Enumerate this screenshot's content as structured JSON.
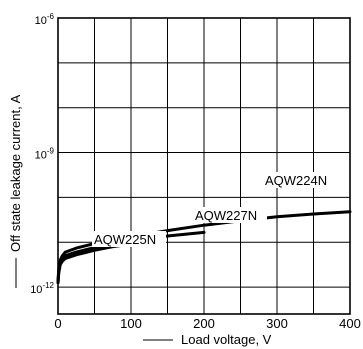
{
  "chart_data": {
    "type": "line",
    "xlabel": "Load voltage, V",
    "ylabel": "Off state leakage current, A",
    "xlim": [
      0,
      400
    ],
    "ylim_exponent": [
      -12.6,
      -6
    ],
    "y_scale": "log",
    "x_ticks": [
      0,
      100,
      200,
      300,
      400
    ],
    "y_ticks": [
      {
        "exp": -12,
        "label": "10",
        "sup": "-12"
      },
      {
        "exp": -9,
        "label": "10",
        "sup": "-9"
      },
      {
        "exp": -6,
        "label": "10",
        "sup": "-6"
      }
    ],
    "grid": true,
    "x_grid": [
      0,
      50,
      100,
      150,
      200,
      250,
      300,
      350,
      400
    ],
    "y_grid_exp": [
      -12,
      -11,
      -10,
      -9,
      -8,
      -7,
      -6
    ],
    "series": [
      {
        "name": "AQW224N",
        "x": [
          0,
          1,
          3,
          6,
          10,
          25,
          50,
          75,
          100,
          150,
          200,
          250,
          300,
          350,
          400
        ],
        "log10_y": [
          -11.9,
          -11.65,
          -11.4,
          -11.3,
          -11.22,
          -11.13,
          -11.03,
          -10.95,
          -10.88,
          -10.74,
          -10.62,
          -10.52,
          -10.43,
          -10.37,
          -10.32
        ]
      },
      {
        "name": "AQW227N",
        "x": [
          0,
          1,
          3,
          6,
          10,
          25,
          50,
          75,
          100,
          150,
          200
        ],
        "log10_y": [
          -11.9,
          -11.6,
          -11.45,
          -11.36,
          -11.3,
          -11.22,
          -11.12,
          -11.04,
          -10.98,
          -10.86,
          -10.78
        ]
      },
      {
        "name": "AQW225N",
        "x": [
          0,
          1,
          3,
          6,
          10,
          25,
          50,
          75,
          100
        ],
        "log10_y": [
          -11.9,
          -11.7,
          -11.5,
          -11.42,
          -11.36,
          -11.28,
          -11.18,
          -11.1,
          -11.04
        ]
      }
    ]
  }
}
